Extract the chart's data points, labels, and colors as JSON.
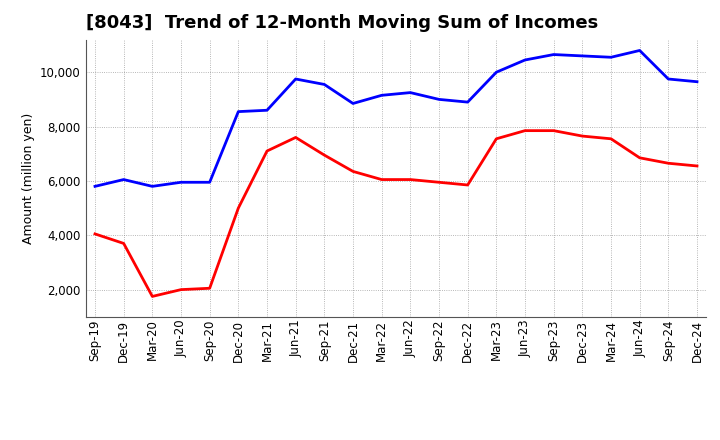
{
  "title": "[8043]  Trend of 12-Month Moving Sum of Incomes",
  "ylabel": "Amount (million yen)",
  "x_labels": [
    "Sep-19",
    "Dec-19",
    "Mar-20",
    "Jun-20",
    "Sep-20",
    "Dec-20",
    "Mar-21",
    "Jun-21",
    "Sep-21",
    "Dec-21",
    "Mar-22",
    "Jun-22",
    "Sep-22",
    "Dec-22",
    "Mar-23",
    "Jun-23",
    "Sep-23",
    "Dec-23",
    "Mar-24",
    "Jun-24",
    "Sep-24",
    "Dec-24"
  ],
  "ordinary_income": [
    5800,
    6050,
    5800,
    5950,
    5950,
    8550,
    8600,
    9750,
    9550,
    8850,
    9150,
    9250,
    9000,
    8900,
    10000,
    10450,
    10650,
    10600,
    10550,
    10800,
    9750,
    9650
  ],
  "net_income": [
    4050,
    3700,
    1750,
    2000,
    2050,
    5000,
    7100,
    7600,
    6950,
    6350,
    6050,
    6050,
    5950,
    5850,
    7550,
    7850,
    7850,
    7650,
    7550,
    6850,
    6650,
    6550
  ],
  "ordinary_color": "#0000FF",
  "net_color": "#FF0000",
  "ylim_min": 1000,
  "ylim_max": 11200,
  "yticks": [
    2000,
    4000,
    6000,
    8000,
    10000
  ],
  "background_color": "#FFFFFF",
  "plot_bg_color": "#FFFFFF",
  "grid_color": "#888888",
  "title_fontsize": 13,
  "axis_fontsize": 9,
  "tick_fontsize": 8.5,
  "legend_fontsize": 9.5,
  "line_width": 2.0
}
